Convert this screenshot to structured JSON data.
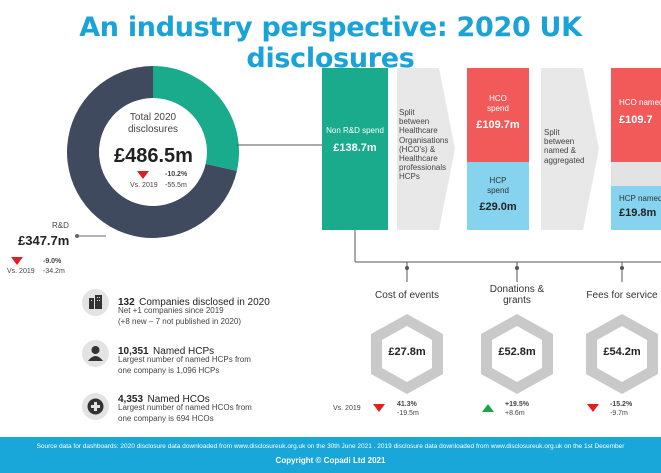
{
  "title": "An industry perspective: 2020 UK disclosures",
  "total": {
    "label_line1": "Total 2020",
    "label_line2": "disclosures",
    "value": "£486.5m",
    "change_pct": "-10.2%",
    "vs_label": "Vs. 2019",
    "change_abs": "-55.5m"
  },
  "rnd": {
    "label": "R&D",
    "value": "£347.7m",
    "vs_label": "Vs. 2019",
    "change_pct": "-9.0%",
    "change_abs": "-34.2m"
  },
  "flow": {
    "non_rnd_label": "Non R&D spend",
    "non_rnd_value": "£138.7m",
    "split_text_1": "Split between Healthcare Organisations (HCO's) & Healthcare professionals HCPs",
    "hco_label": "HCO spend",
    "hco_value": "£109.7m",
    "hcp_label": "HCP spend",
    "hcp_value": "£29.0m",
    "split_text_2": "Split between named & aggregated",
    "hco_named_label": "HCO named",
    "hco_named_value": "£109.7",
    "hcp_named_label": "HCP named",
    "hcp_named_value": "£19.8m"
  },
  "info": [
    {
      "num": "132",
      "headline": "Companies disclosed in 2020",
      "line1": "Net +1 companies since 2019",
      "line2": "(+8 new – 7 not published in 2020)",
      "icon": "buildings-icon"
    },
    {
      "num": "10,351",
      "headline": "Named HCPs",
      "line1": "Largest number of named HCPs from",
      "line2": "one company is 1,096 HCPs",
      "icon": "person-icon"
    },
    {
      "num": "4,353",
      "headline": "Named HCOs",
      "line1": "Largest number of named HCOs from",
      "line2": "one company is 694 HCOs",
      "icon": "medical-cross-icon"
    }
  ],
  "categories": {
    "vs_label": "Vs. 2019",
    "items": [
      {
        "name_line1": "Cost of events",
        "name_line2": "",
        "value": "£27.8m",
        "change_pct": "41.3%",
        "change_abs": "-19.5m",
        "direction": "down"
      },
      {
        "name_line1": "Donations &",
        "name_line2": "grants",
        "value": "£52.8m",
        "change_pct": "+19.5%",
        "change_abs": "+8.6m",
        "direction": "up"
      },
      {
        "name_line1": "Fees for service",
        "name_line2": "",
        "value": "£54.2m",
        "change_pct": "-15.2%",
        "change_abs": "-9.7m",
        "direction": "down"
      }
    ]
  },
  "footer": {
    "source": "Source data for dashboards: 2020 disclosure data downloaded from www.disclosureuk.org.uk on the 30th June 2021 . 2019 disclosure data downloaded from www.disclosureuk.org.uk on the 1st December",
    "copyright": "Copyright © Copadi Ltd 2021"
  },
  "colors": {
    "accent": "#1aa3d9",
    "teal": "#1aaa8c",
    "navy": "#3f4a5e",
    "red": "#f25a5a",
    "light_blue": "#86d3ef",
    "grey": "#c9c9c9",
    "down": "#e02020",
    "up": "#1aa34a"
  },
  "chart_data": {
    "type": "pie",
    "title": "Total 2020 disclosures",
    "categories": [
      "R&D",
      "Non R&D spend"
    ],
    "values": [
      347.7,
      138.7
    ],
    "unit": "£m"
  }
}
